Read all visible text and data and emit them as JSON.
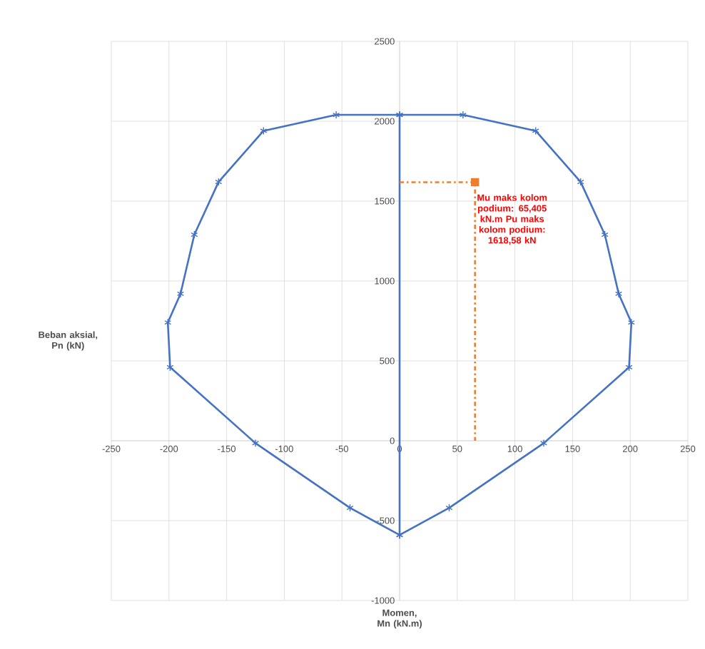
{
  "chart_data": {
    "type": "line",
    "xlabel": "Momen, Mn (kN.m)",
    "ylabel": "Beban aksial, Pn (kN)",
    "xlim": [
      -250,
      250
    ],
    "ylim": [
      -1000,
      2500
    ],
    "xticks": [
      -250,
      -200,
      -150,
      -100,
      -50,
      0,
      50,
      100,
      150,
      200,
      250
    ],
    "yticks": [
      -1000,
      -500,
      0,
      500,
      1000,
      1500,
      2000,
      2500
    ],
    "grid": true,
    "series": [
      {
        "color": "#4472c4",
        "marker": "cross",
        "line_style": "solid",
        "x": [
          0,
          55,
          118,
          157,
          178,
          190,
          201,
          199,
          125,
          43,
          0,
          -43,
          -125,
          -199,
          -201,
          -190,
          -178,
          -157,
          -118,
          -55,
          0,
          0
        ],
        "values": [
          2040,
          2040,
          1940,
          1620,
          1290,
          920,
          740,
          460,
          -15,
          -420,
          -590,
          -420,
          -15,
          460,
          740,
          920,
          1290,
          1620,
          1940,
          2040,
          2040,
          -590
        ]
      },
      {
        "color": "#ed7d31",
        "marker": "none",
        "line_style": "dashdot",
        "x": [
          0,
          65.405,
          65.405
        ],
        "values": [
          1618.58,
          1618.58,
          0
        ]
      },
      {
        "type": "scatter",
        "color": "#ed7d31",
        "marker": "square",
        "x": [
          65.405
        ],
        "values": [
          1618.58
        ]
      }
    ],
    "annotations": [
      {
        "text": "Mu maks kolom podium: 65,405 kN.m Pu maks kolom podium: 1618,58 kN",
        "x": 65.405,
        "y": 1618.58
      }
    ]
  }
}
